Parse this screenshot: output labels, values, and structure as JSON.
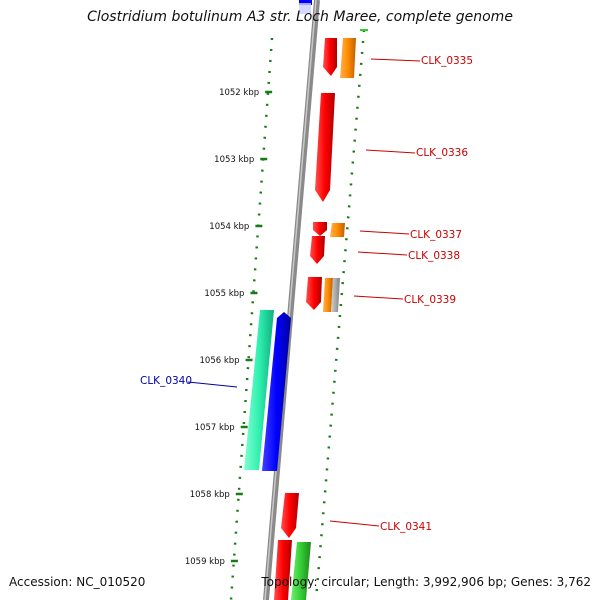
{
  "title": "Clostridium botulinum A3 str. Loch Maree, complete genome",
  "footer": {
    "accession": "Accession: NC_010520",
    "summary": "Topology: circular; Length: 3,992,906 bp; Genes: 3,762"
  },
  "ticks": [
    {
      "label": "1052 kbp"
    },
    {
      "label": "1053 kbp"
    },
    {
      "label": "1054 kbp"
    },
    {
      "label": "1055 kbp"
    },
    {
      "label": "1056 kbp"
    },
    {
      "label": "1057 kbp"
    },
    {
      "label": "1058 kbp"
    },
    {
      "label": "1059 kbp"
    }
  ],
  "genes": [
    {
      "label": "CLK_0335",
      "color": "#cc0000"
    },
    {
      "label": "CLK_0336",
      "color": "#cc0000"
    },
    {
      "label": "CLK_0337",
      "color": "#cc0000"
    },
    {
      "label": "CLK_0338",
      "color": "#cc0000"
    },
    {
      "label": "CLK_0339",
      "color": "#cc0000"
    },
    {
      "label": "CLK_0340",
      "color": "#0000aa"
    },
    {
      "label": "CLK_0341",
      "color": "#cc0000"
    }
  ],
  "colors": {
    "cds_forward": "#ff0000",
    "other_feature": "#ff8c00",
    "cds_reverse": "#0000ff",
    "rna": "#00e6a0",
    "green_feature": "#33cc33",
    "gray_feature": "#aaaaaa",
    "backbone": "#808080",
    "dotted_track": "#1a7a1a"
  }
}
